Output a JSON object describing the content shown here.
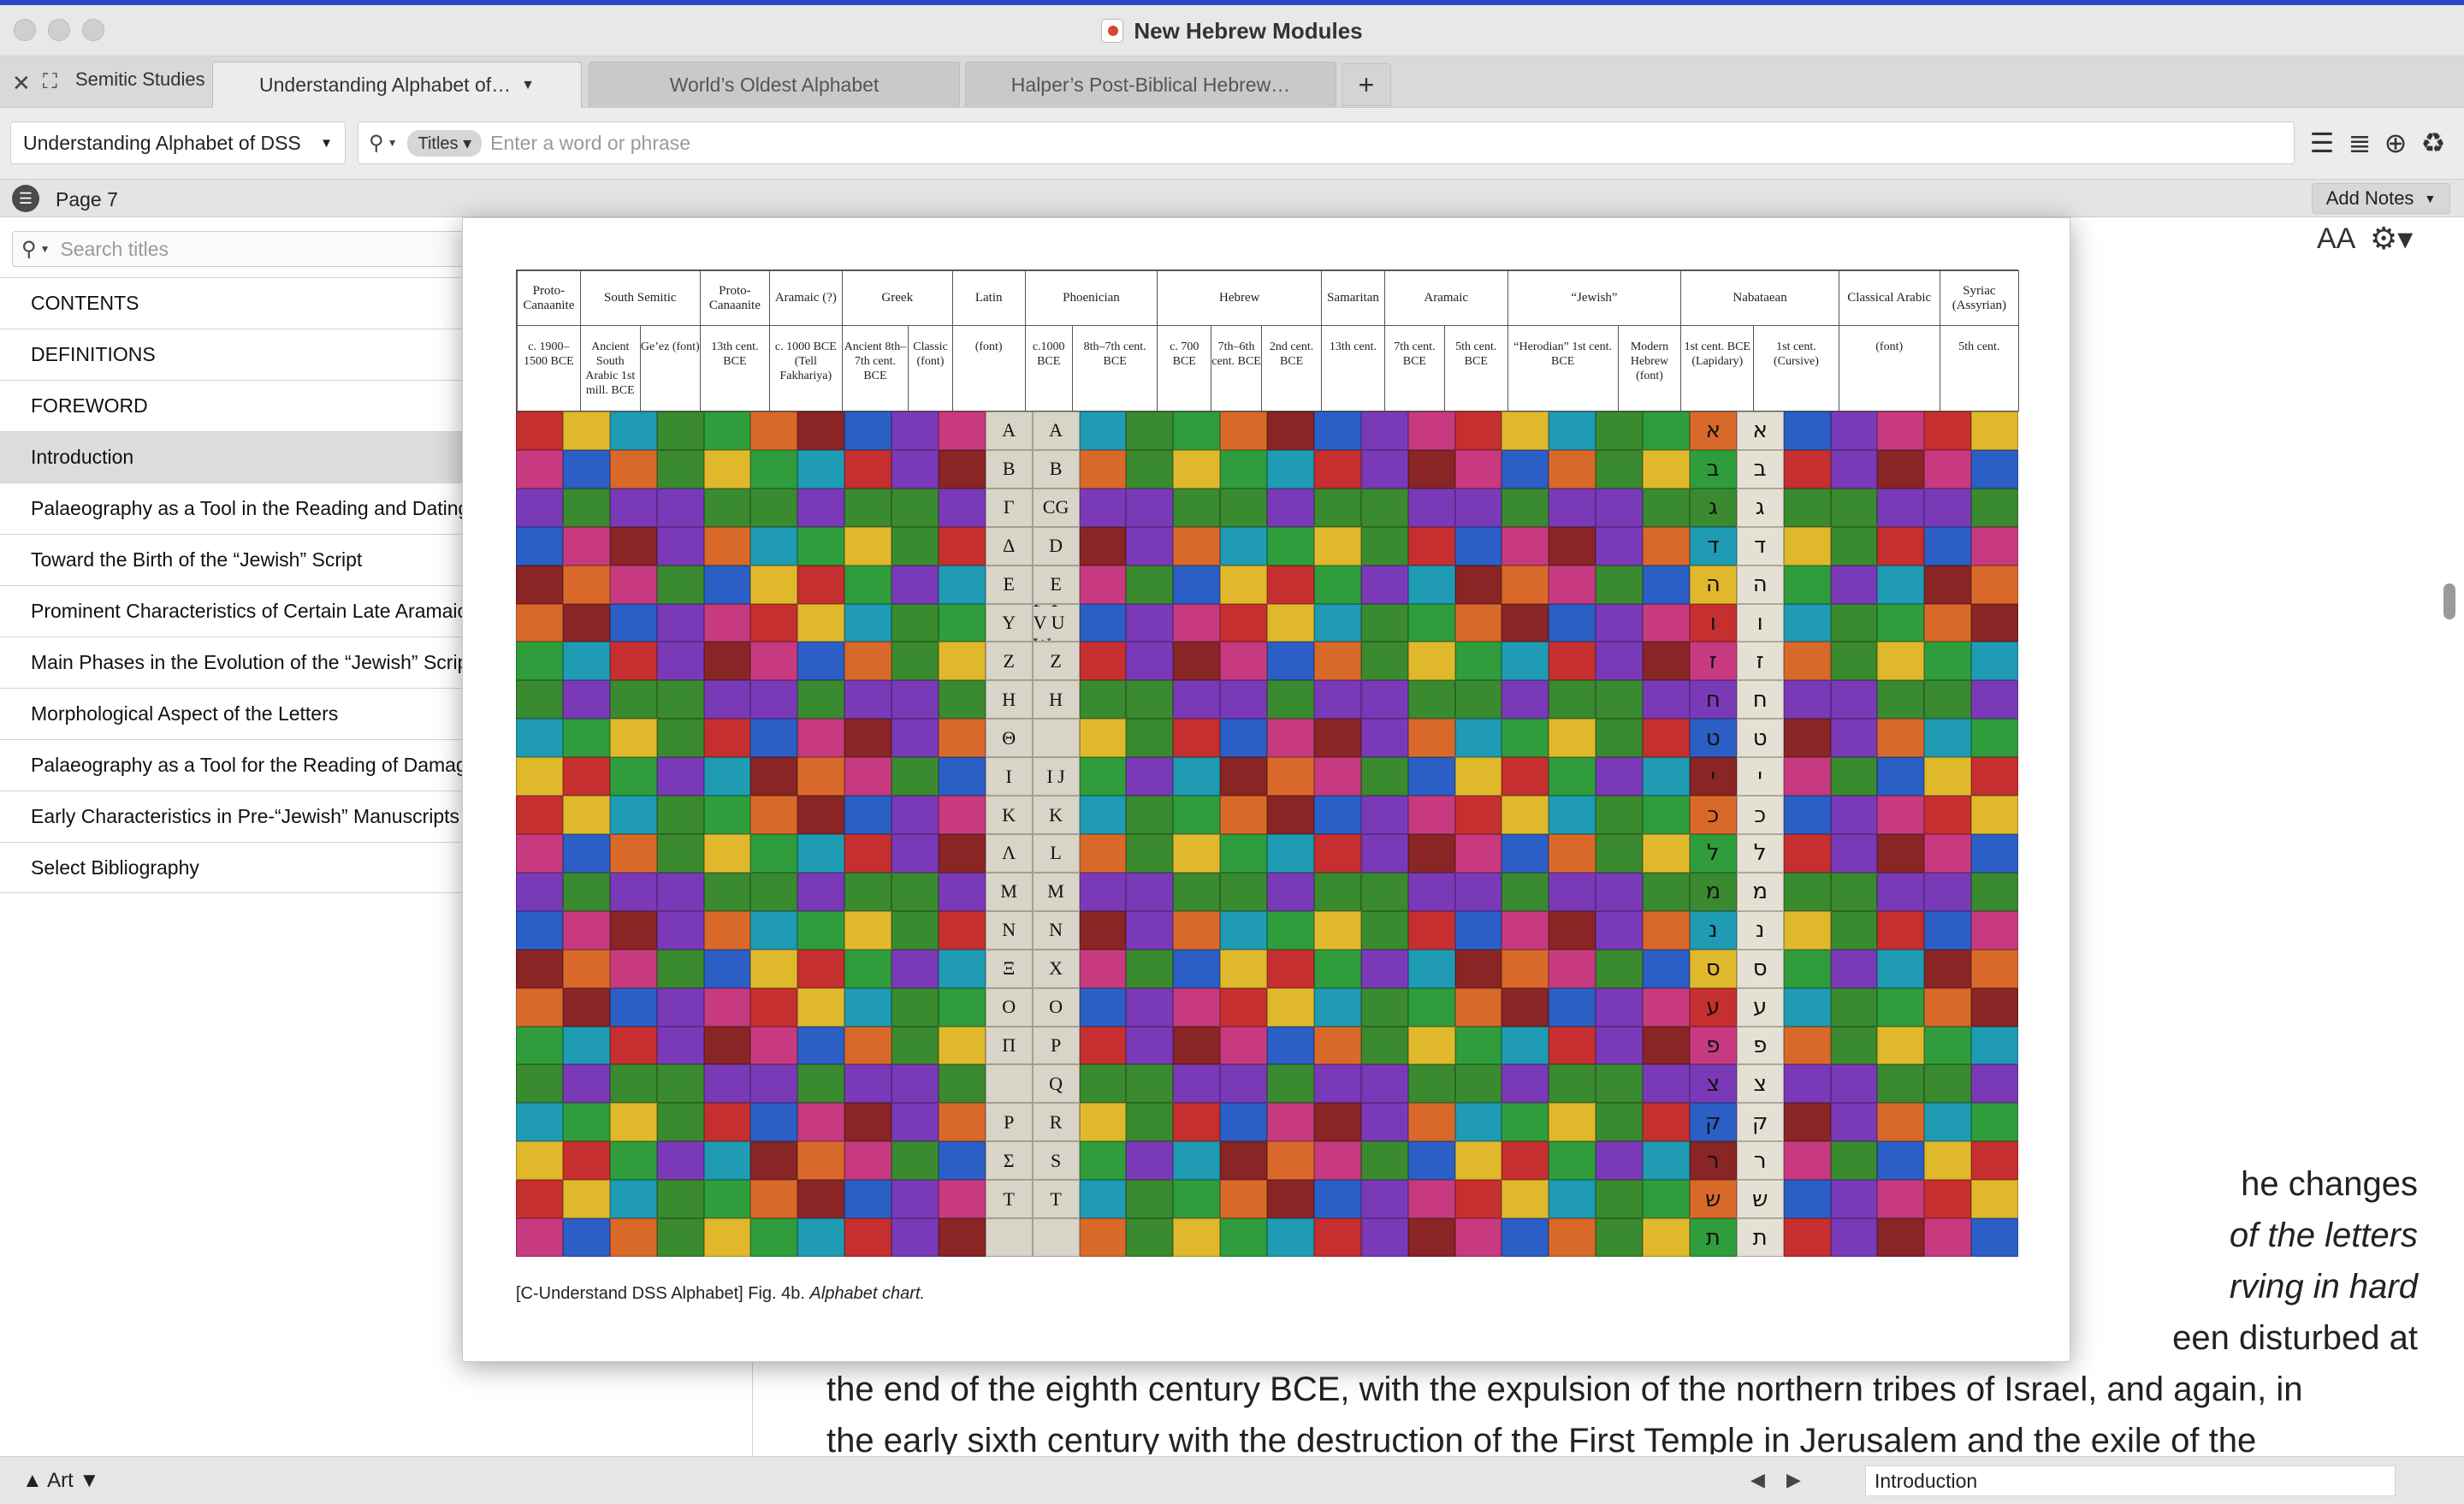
{
  "window": {
    "title": "New Hebrew Modules"
  },
  "tabbar": {
    "workspace": "Semitic Studies",
    "tabs": [
      {
        "label": "Understanding Alphabet of…",
        "active": true
      },
      {
        "label": "World’s Oldest Alphabet",
        "active": false
      },
      {
        "label": "Halper’s Post-Biblical Hebrew…",
        "active": false
      }
    ],
    "add_label": "+"
  },
  "toolbar": {
    "doc_select": "Understanding Alphabet of DSS",
    "search_scope": "Titles",
    "search_placeholder": "Enter a word or phrase",
    "icons": [
      "hamburger-icon",
      "outline-icon",
      "add-circle-icon",
      "recycle-icon"
    ]
  },
  "pagebar": {
    "page": "Page 7",
    "add_notes": "Add Notes"
  },
  "sidebar": {
    "search_placeholder": "Search titles",
    "items": [
      "CONTENTS",
      "DEFINITIONS",
      "FOREWORD",
      "Introduction",
      "Palaeography as a Tool in the Reading and Dating",
      "Toward the Birth of the “Jewish” Script",
      "Prominent Characteristics of Certain Late Aramaic",
      "Main Phases in the Evolution of the “Jewish” Script",
      "Morphological Aspect of the Letters",
      "Palaeography as a Tool for the Reading of Damaged",
      "Early Characteristics in Pre-“Jewish” Manuscripts",
      "Select Bibliography"
    ],
    "selected": "Introduction"
  },
  "main": {
    "text_size_icon": "AA",
    "settings_icon": "gear-icon",
    "text_lines": [
      "he changes",
      "of the letters",
      "rving in hard",
      "een disturbed at",
      "the end of the eighth century BCE, with the expulsion of the northern tribes of Israel, and again, in",
      "the early sixth century with the destruction of the First Temple in Jerusalem and the exile of the"
    ]
  },
  "popup": {
    "caption_prefix": "[C-Understand DSS Alphabet] Fig. 4b.",
    "caption_title": "Alphabet chart.",
    "groups": [
      {
        "name": "Proto-Canaanite",
        "span": 1
      },
      {
        "name": "South Semitic",
        "span": 2
      },
      {
        "name": "Proto-Canaanite",
        "span": 1
      },
      {
        "name": "Aramaic (?)",
        "span": 1
      },
      {
        "name": "Greek",
        "span": 2
      },
      {
        "name": "Latin",
        "span": 1
      },
      {
        "name": "Phoenician",
        "span": 2
      },
      {
        "name": "Hebrew",
        "span": 3
      },
      {
        "name": "Samaritan",
        "span": 1
      },
      {
        "name": "Aramaic",
        "span": 2
      },
      {
        "name": "“Jewish”",
        "span": 2
      },
      {
        "name": "Nabataean",
        "span": 2
      },
      {
        "name": "Classical Arabic",
        "span": 1
      },
      {
        "name": "Syriac (Assyrian)",
        "span": 1
      }
    ],
    "subheaders": [
      "c. 1900–1500 BCE",
      "Ancient South Arabic 1st mill. BCE",
      "Ge’ez (font)",
      "13th cent. BCE",
      "c. 1000 BCE (Tell Fakhariya)",
      "Ancient 8th–7th cent. BCE",
      "Classic (font)",
      "(font)",
      "c.1000 BCE",
      "8th–7th cent. BCE",
      "c. 700 BCE",
      "7th–6th cent. BCE",
      "2nd cent. BCE",
      "13th cent.",
      "7th cent. BCE",
      "5th cent. BCE",
      "“Herodian” 1st cent. BCE",
      "Modern Hebrew (font)",
      "1st cent. BCE (Lapidary)",
      "1st cent. (Cursive)",
      "(font)",
      "5th cent."
    ],
    "latin_letters": [
      "A",
      "B",
      "CG",
      "D",
      "E",
      "F Y V U W",
      "Z",
      "H",
      "",
      "I J",
      "K",
      "L",
      "M",
      "N",
      "X",
      "O",
      "P",
      "Q",
      "R",
      "S",
      "T",
      ""
    ],
    "greek_letters": [
      "A",
      "B",
      "Γ",
      "Δ",
      "E",
      "Y",
      "Z",
      "H",
      "Θ",
      "I",
      "K",
      "Λ",
      "M",
      "N",
      "Ξ",
      "O",
      "Π",
      "",
      "P",
      "Σ",
      "T",
      ""
    ],
    "hebrew_letters": [
      "א",
      "ב",
      "ג",
      "ד",
      "ה",
      "ו",
      "ז",
      "ח",
      "ט",
      "י",
      "כ",
      "ל",
      "מ",
      "נ",
      "ס",
      "ע",
      "פ",
      "צ",
      "ק",
      "ר",
      "ש",
      "ת"
    ],
    "tile_colors": [
      "#c62f2f",
      "#2b5fc6",
      "#2f9d3c",
      "#e0b82c",
      "#7a3ab8",
      "#d9692a",
      "#1f9bb3",
      "#c73a7f",
      "#8a2525",
      "#3a8a2f"
    ]
  },
  "statusbar": {
    "left_label": "Art",
    "location": "Introduction"
  }
}
